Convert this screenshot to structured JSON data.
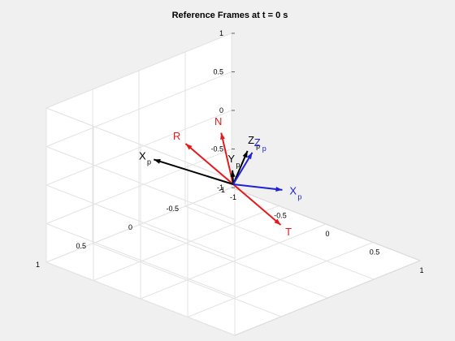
{
  "chart_data": {
    "type": "3d-vector",
    "title": "Reference Frames at t = 0 s",
    "xlabel": "",
    "ylabel": "",
    "zlabel": "",
    "xlim": [
      -1,
      1
    ],
    "ylim": [
      -1,
      1
    ],
    "zlim": [
      -1,
      1
    ],
    "x_ticks": [
      "-1",
      "-0.5",
      "0",
      "0.5",
      "1"
    ],
    "y_ticks": [
      "-1",
      "-0.5",
      "0",
      "0.5",
      "1"
    ],
    "z_ticks": [
      "-1",
      "-0.5",
      "0",
      "0.5",
      "1"
    ],
    "grid": true,
    "box": true,
    "origin": [
      0,
      0,
      0
    ],
    "vectors": [
      {
        "label": "R",
        "sub": "",
        "color": "#e41a1c",
        "end": [
          -0.75,
          -0.25,
          0.05
        ]
      },
      {
        "label": "T",
        "sub": "",
        "color": "#e41a1c",
        "end": [
          0.75,
          0.25,
          -0.05
        ]
      },
      {
        "label": "N",
        "sub": "",
        "color": "#e41a1c",
        "end": [
          0.02,
          0.15,
          0.75
        ]
      },
      {
        "label": "X",
        "sub": "p",
        "color": "#000000",
        "end": [
          -0.4,
          0.45,
          0.35
        ]
      },
      {
        "label": "Y",
        "sub": "p",
        "color": "#000000",
        "end": [
          -0.45,
          -0.45,
          -0.25
        ]
      },
      {
        "label": "Z",
        "sub": "p",
        "color": "#000000",
        "end": [
          0.25,
          0.1,
          0.6
        ]
      },
      {
        "label": "X",
        "sub": "p",
        "color": "#1f22d6",
        "end": [
          0.6,
          0.08,
          0.25
        ]
      },
      {
        "label": "Z",
        "sub": "p",
        "color": "#1f22d6",
        "end": [
          0.35,
          0.15,
          0.65
        ]
      }
    ]
  }
}
